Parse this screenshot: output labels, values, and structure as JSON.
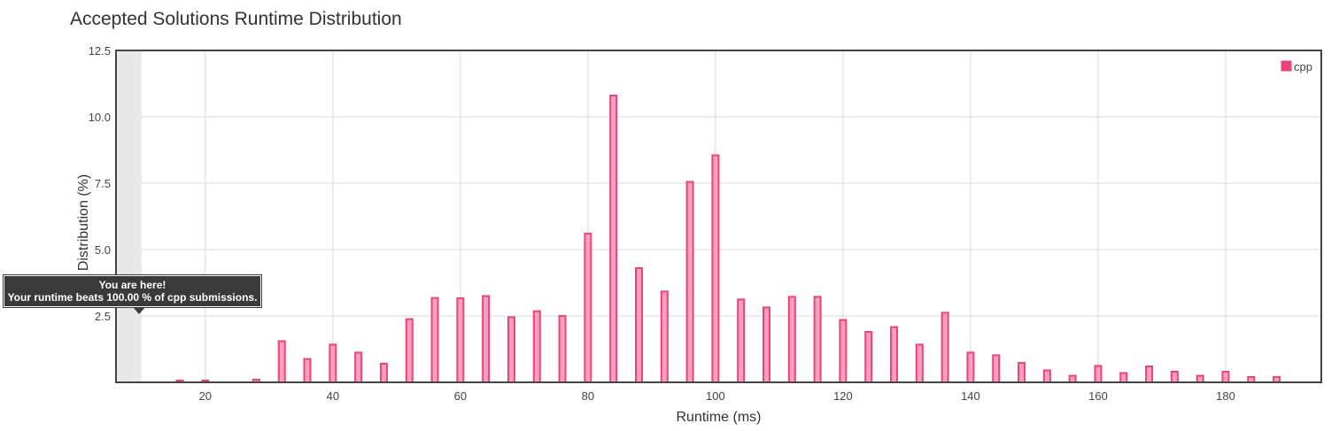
{
  "chart_title": "Accepted Solutions Runtime Distribution",
  "chart_data": {
    "type": "bar",
    "title": "Accepted Solutions Runtime Distribution",
    "xlabel": "Runtime (ms)",
    "ylabel": "Distribution (%)",
    "xlim": [
      6,
      195
    ],
    "ylim": [
      0,
      12.5
    ],
    "x_ticks": [
      20,
      40,
      60,
      80,
      100,
      120,
      140,
      160,
      180
    ],
    "y_ticks": [
      2.5,
      5.0,
      7.5,
      10.0,
      12.5
    ],
    "x_tick_labels": [
      "20",
      "40",
      "60",
      "80",
      "100",
      "120",
      "140",
      "160",
      "180"
    ],
    "y_tick_labels": [
      "2.5",
      "5.0",
      "7.5",
      "10.0",
      "12.5"
    ],
    "grid": true,
    "legend_position": "top-right",
    "series": [
      {
        "name": "cpp",
        "color": "#e8457a",
        "fill": "#ff9ec0",
        "x": [
          16,
          20,
          28,
          32,
          36,
          40,
          44,
          48,
          52,
          56,
          60,
          64,
          68,
          72,
          76,
          80,
          84,
          88,
          92,
          96,
          100,
          104,
          108,
          112,
          116,
          120,
          124,
          128,
          132,
          136,
          140,
          144,
          148,
          152,
          156,
          160,
          164,
          168,
          172,
          176,
          180,
          184,
          188
        ],
        "values": [
          0.07,
          0.07,
          0.1,
          1.55,
          0.88,
          1.42,
          1.12,
          0.7,
          2.38,
          3.18,
          3.17,
          3.25,
          2.45,
          2.68,
          2.5,
          5.6,
          10.8,
          4.3,
          3.42,
          7.55,
          8.55,
          3.12,
          2.82,
          3.22,
          3.22,
          2.35,
          1.9,
          2.08,
          1.42,
          2.62,
          1.12,
          1.02,
          0.73,
          0.45,
          0.25,
          0.62,
          0.35,
          0.6,
          0.4,
          0.25,
          0.4,
          0.2,
          0.2
        ]
      }
    ],
    "highlight_band": {
      "x": [
        6,
        10
      ],
      "color": "#e8e8e8"
    },
    "tooltip": {
      "line1": "You are here!",
      "line2": "Your runtime beats 100.00 % of cpp submissions."
    }
  }
}
